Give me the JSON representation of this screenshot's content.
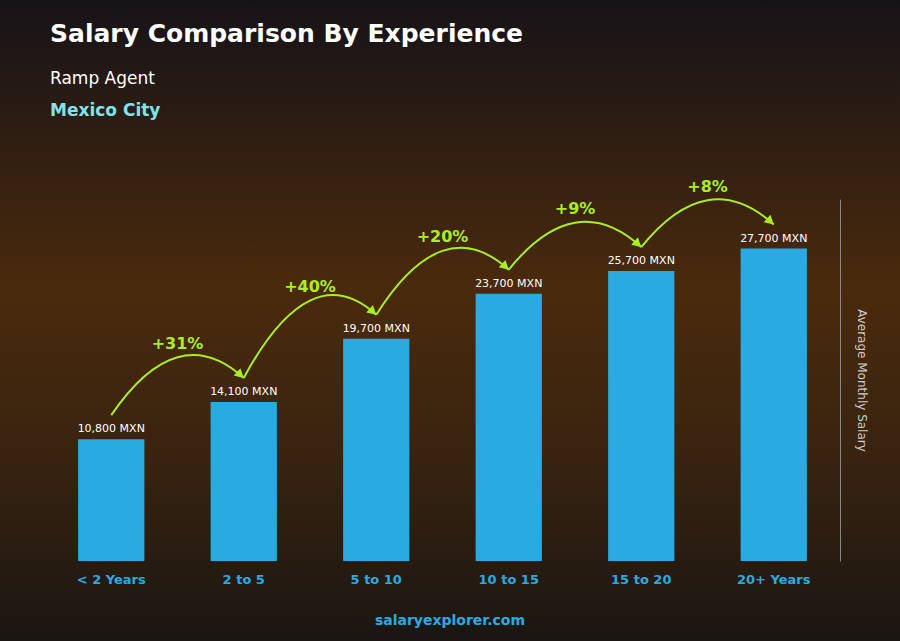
{
  "chart_data": {
    "type": "bar",
    "title": "Salary Comparison By Experience",
    "subtitle": [
      "Ramp Agent",
      "Mexico City"
    ],
    "categories": [
      "< 2 Years",
      "2 to 5",
      "5 to 10",
      "10 to 15",
      "15 to 20",
      "20+ Years"
    ],
    "values": [
      10800,
      14100,
      19700,
      23700,
      25700,
      27700
    ],
    "value_labels": [
      "10,800 MXN",
      "14,100 MXN",
      "19,700 MXN",
      "23,700 MXN",
      "25,700 MXN",
      "27,700 MXN"
    ],
    "data_labels": true,
    "color": "#29ABE2",
    "ylabel": "Average Monthly Salary",
    "ylim": [
      0,
      32000
    ],
    "grid": false,
    "tick_labels": "x",
    "annotations": [
      {
        "text": "+31%",
        "between": [
          "< 2 Years",
          "2 to 5"
        ],
        "color": "#AAEE22"
      },
      {
        "text": "+40%",
        "between": [
          "2 to 5",
          "5 to 10"
        ],
        "color": "#AAEE22"
      },
      {
        "text": "+20%",
        "between": [
          "5 to 10",
          "10 to 15"
        ],
        "color": "#AAEE22"
      },
      {
        "text": "+9%",
        "between": [
          "10 to 15",
          "15 to 20"
        ],
        "color": "#AAEE22"
      },
      {
        "text": "+8%",
        "between": [
          "15 to 20",
          "20+ Years"
        ],
        "color": "#AAEE22"
      }
    ],
    "watermark": "salaryexplorer.com"
  }
}
